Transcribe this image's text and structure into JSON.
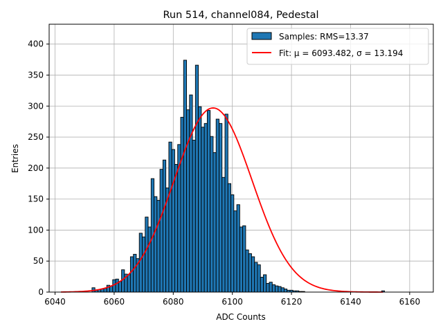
{
  "chart_data": {
    "type": "bar",
    "title": "Run 514, channel084, Pedestal",
    "xlabel": "ADC Counts",
    "ylabel": "Entries",
    "xlim": [
      6038,
      6168
    ],
    "ylim": [
      0,
      432
    ],
    "x_ticks": [
      6040,
      6060,
      6080,
      6100,
      6120,
      6140,
      6160
    ],
    "y_ticks": [
      0,
      50,
      100,
      150,
      200,
      250,
      300,
      350,
      400
    ],
    "grid": true,
    "legend_position": "top-right",
    "bin_width": 1,
    "bins": [
      [
        6053,
        7
      ],
      [
        6054,
        3
      ],
      [
        6055,
        4
      ],
      [
        6056,
        5
      ],
      [
        6057,
        6
      ],
      [
        6058,
        11
      ],
      [
        6059,
        10
      ],
      [
        6060,
        20
      ],
      [
        6061,
        21
      ],
      [
        6062,
        17
      ],
      [
        6063,
        36
      ],
      [
        6064,
        29
      ],
      [
        6065,
        28
      ],
      [
        6066,
        57
      ],
      [
        6067,
        61
      ],
      [
        6068,
        54
      ],
      [
        6069,
        95
      ],
      [
        6070,
        89
      ],
      [
        6071,
        121
      ],
      [
        6072,
        105
      ],
      [
        6073,
        183
      ],
      [
        6074,
        154
      ],
      [
        6075,
        148
      ],
      [
        6076,
        198
      ],
      [
        6077,
        213
      ],
      [
        6078,
        168
      ],
      [
        6079,
        242
      ],
      [
        6080,
        230
      ],
      [
        6081,
        206
      ],
      [
        6082,
        238
      ],
      [
        6083,
        282
      ],
      [
        6084,
        374
      ],
      [
        6085,
        294
      ],
      [
        6086,
        318
      ],
      [
        6087,
        245
      ],
      [
        6088,
        366
      ],
      [
        6089,
        299
      ],
      [
        6090,
        266
      ],
      [
        6091,
        272
      ],
      [
        6092,
        293
      ],
      [
        6093,
        251
      ],
      [
        6094,
        225
      ],
      [
        6095,
        279
      ],
      [
        6096,
        272
      ],
      [
        6097,
        185
      ],
      [
        6098,
        287
      ],
      [
        6099,
        175
      ],
      [
        6100,
        157
      ],
      [
        6101,
        131
      ],
      [
        6102,
        141
      ],
      [
        6103,
        105
      ],
      [
        6104,
        107
      ],
      [
        6105,
        68
      ],
      [
        6106,
        62
      ],
      [
        6107,
        57
      ],
      [
        6108,
        48
      ],
      [
        6109,
        44
      ],
      [
        6110,
        24
      ],
      [
        6111,
        28
      ],
      [
        6112,
        14
      ],
      [
        6113,
        16
      ],
      [
        6114,
        12
      ],
      [
        6115,
        10
      ],
      [
        6116,
        9
      ],
      [
        6117,
        7
      ],
      [
        6118,
        5
      ],
      [
        6119,
        3
      ],
      [
        6120,
        3
      ],
      [
        6121,
        2
      ],
      [
        6122,
        2
      ],
      [
        6123,
        1
      ],
      [
        6124,
        1
      ],
      [
        6151,
        2
      ]
    ],
    "fit": {
      "mu": 6093.482,
      "sigma": 13.194,
      "amplitude": 297,
      "x_range": [
        6042,
        6151
      ]
    },
    "legend": [
      {
        "label": "Samples: RMS=13.37",
        "kind": "patch",
        "color": "#1f77b4"
      },
      {
        "label": "Fit: μ = 6093.482, σ = 13.194",
        "kind": "line",
        "color": "#ff0000"
      }
    ]
  }
}
